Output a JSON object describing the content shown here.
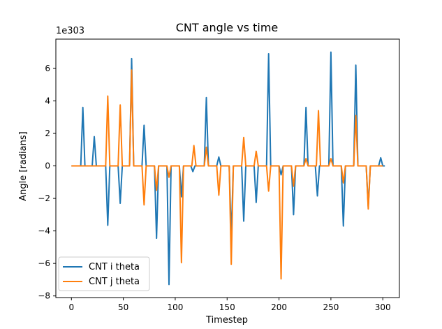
{
  "chart_data": {
    "type": "line",
    "title": "CNT angle vs time",
    "xlabel": "Timestep",
    "ylabel": "Angle [radians]",
    "y_offset_label": "1e303",
    "xlim": [
      -15,
      316
    ],
    "ylim": [
      -8.1,
      7.8
    ],
    "xticks": [
      0,
      50,
      100,
      150,
      200,
      250,
      300
    ],
    "yticks": [
      -8,
      -6,
      -4,
      -2,
      0,
      2,
      4,
      6
    ],
    "legend_position": "lower-left",
    "grid": false,
    "series": [
      {
        "name": "CNT i theta",
        "color": "#1f77b4",
        "x": [
          0,
          9,
          11,
          13,
          20,
          22,
          24,
          33,
          35,
          37,
          45,
          47,
          49,
          56,
          58,
          60,
          68,
          70,
          72,
          80,
          82,
          84,
          92,
          94,
          96,
          104,
          106,
          108,
          115,
          117,
          119,
          128,
          130,
          132,
          140,
          142,
          144,
          152,
          154,
          156,
          164,
          166,
          168,
          176,
          178,
          180,
          188,
          190,
          192,
          200,
          202,
          204,
          212,
          214,
          216,
          224,
          226,
          228,
          235,
          237,
          239,
          248,
          250,
          252,
          260,
          262,
          264,
          272,
          274,
          276,
          284,
          286,
          288,
          296,
          298,
          300,
          302
        ],
        "y": [
          0,
          0,
          3.6,
          0,
          0,
          1.8,
          0,
          0,
          -3.65,
          0,
          0,
          -2.3,
          0,
          0,
          6.6,
          0,
          0,
          2.5,
          0,
          0,
          -4.45,
          0,
          0,
          -7.3,
          0,
          0,
          -1.9,
          0,
          0,
          -0.35,
          0,
          0,
          4.2,
          0,
          0,
          0.55,
          0,
          0,
          -4.4,
          0,
          0,
          -3.4,
          0,
          0,
          -2.25,
          0,
          0,
          6.9,
          0,
          0,
          -0.55,
          0,
          0,
          -3.0,
          0,
          0,
          3.6,
          0,
          0,
          -1.85,
          0,
          0,
          7.0,
          0,
          0,
          -3.7,
          0,
          0,
          6.2,
          0,
          0,
          -2.5,
          0,
          0,
          0.5,
          0,
          0
        ]
      },
      {
        "name": "CNT j theta",
        "color": "#ff7f0e",
        "x": [
          0,
          33,
          35,
          37,
          45,
          47,
          49,
          56,
          58,
          60,
          68,
          70,
          72,
          80,
          82,
          84,
          92,
          94,
          96,
          104,
          106,
          108,
          116,
          118,
          120,
          128,
          130,
          132,
          140,
          142,
          144,
          152,
          154,
          156,
          164,
          166,
          168,
          176,
          178,
          180,
          188,
          190,
          192,
          200,
          202,
          204,
          212,
          214,
          216,
          224,
          226,
          228,
          236,
          238,
          240,
          248,
          250,
          252,
          260,
          262,
          264,
          272,
          274,
          276,
          284,
          286,
          288,
          300
        ],
        "y": [
          0,
          0,
          4.3,
          0,
          0,
          3.75,
          0,
          0,
          5.9,
          0,
          0,
          -2.4,
          0,
          0,
          -1.5,
          0,
          0,
          -0.7,
          0,
          0,
          -5.95,
          0,
          0,
          1.25,
          0,
          0,
          1.15,
          0,
          0,
          -1.8,
          0,
          0,
          -6.05,
          0,
          0,
          1.75,
          0,
          0,
          0.9,
          0,
          0,
          -1.55,
          0,
          0,
          -6.95,
          0,
          0,
          -1.25,
          0,
          0,
          0.45,
          0,
          0,
          3.4,
          0,
          0,
          0.45,
          0,
          0,
          -1.05,
          0,
          0,
          3.1,
          0,
          0,
          -2.65,
          0,
          0
        ]
      }
    ]
  }
}
